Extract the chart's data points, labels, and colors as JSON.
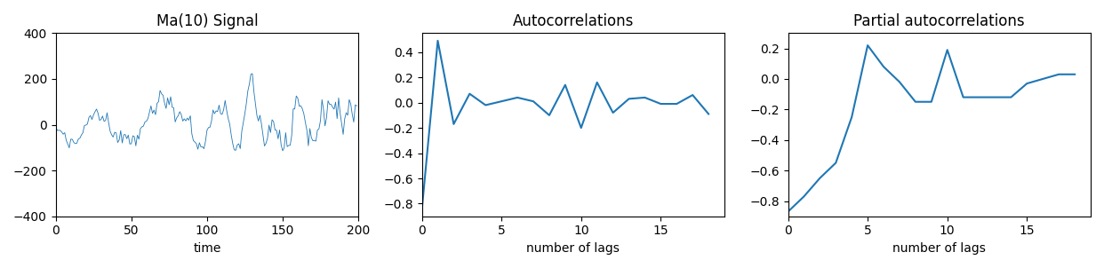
{
  "title1": "Ma(10) Signal",
  "title2": "Autocorrelations",
  "title3": "Partial autocorrelations",
  "xlabel1": "time",
  "xlabel2": "number of lags",
  "xlabel3": "number of lags",
  "acf_y": [
    -0.85,
    0.49,
    -0.17,
    0.07,
    -0.02,
    0.01,
    0.04,
    0.01,
    -0.1,
    0.14,
    -0.2,
    0.16,
    -0.08,
    0.03,
    0.04,
    -0.01,
    -0.01,
    0.06,
    -0.09
  ],
  "pacf_y": [
    -0.87,
    -0.77,
    -0.65,
    -0.55,
    -0.25,
    0.22,
    0.08,
    -0.02,
    -0.15,
    -0.15,
    0.19,
    -0.12,
    -0.12,
    -0.12,
    -0.12,
    -0.03,
    0.0,
    0.03,
    0.03
  ],
  "line_color": "#1f77b4",
  "signal_ylim": [
    -400,
    400
  ],
  "signal_yticks": [
    -400,
    -200,
    0,
    200,
    400
  ],
  "signal_xlim": [
    0,
    200
  ],
  "signal_xticks": [
    0,
    50,
    100,
    150,
    200
  ],
  "acf_ylim": [
    -0.9,
    0.55
  ],
  "acf_yticks": [
    -0.8,
    -0.6,
    -0.4,
    -0.2,
    0.0,
    0.2,
    0.4
  ],
  "acf_xlim": [
    0,
    19
  ],
  "acf_xticks": [
    0,
    5,
    10,
    15
  ],
  "pacf_ylim": [
    -0.9,
    0.3
  ],
  "pacf_yticks": [
    -0.8,
    -0.6,
    -0.4,
    -0.2,
    0.0,
    0.2
  ],
  "pacf_xlim": [
    0,
    19
  ],
  "pacf_xticks": [
    0,
    5,
    10,
    15
  ],
  "fig_width": 12.42,
  "fig_height": 3.02,
  "dpi": 100,
  "signal_n": 200,
  "ma_order": 10,
  "seed": 2023
}
